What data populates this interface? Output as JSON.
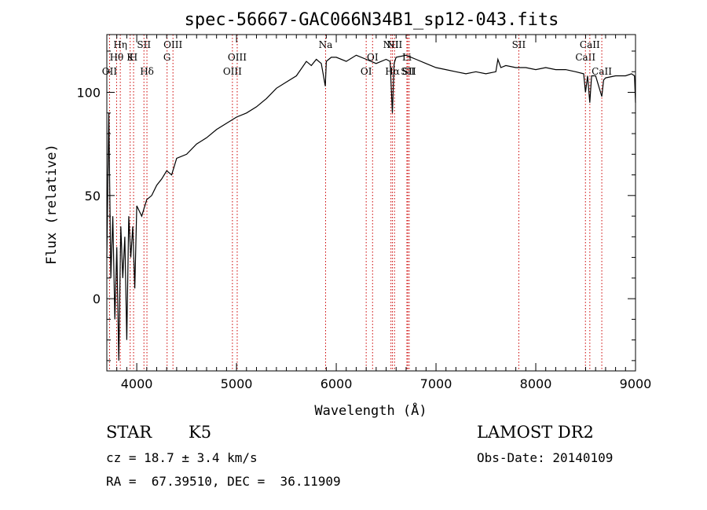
{
  "chart_data": {
    "type": "line",
    "title": "spec-56667-GAC066N34B1_sp12-043.fits",
    "xlabel": "Wavelength (Å)",
    "ylabel": "Flux (relative)",
    "xlim": [
      3700,
      9000
    ],
    "ylim": [
      -35,
      128
    ],
    "xticks": [
      4000,
      5000,
      6000,
      7000,
      8000,
      9000
    ],
    "yticks": [
      0,
      50,
      100
    ],
    "series": [
      {
        "name": "spectrum",
        "x": [
          3700,
          3720,
          3740,
          3760,
          3780,
          3800,
          3820,
          3840,
          3860,
          3880,
          3900,
          3920,
          3940,
          3960,
          3980,
          4000,
          4050,
          4100,
          4150,
          4200,
          4250,
          4300,
          4350,
          4400,
          4500,
          4600,
          4700,
          4800,
          4900,
          5000,
          5100,
          5200,
          5300,
          5400,
          5500,
          5600,
          5700,
          5750,
          5800,
          5850,
          5890,
          5900,
          5950,
          6000,
          6100,
          6200,
          6300,
          6400,
          6500,
          6540,
          6563,
          6580,
          6600,
          6700,
          6800,
          6900,
          7000,
          7100,
          7200,
          7300,
          7400,
          7500,
          7600,
          7620,
          7650,
          7700,
          7800,
          7900,
          8000,
          8100,
          8200,
          8300,
          8400,
          8480,
          8498,
          8520,
          8542,
          8560,
          8600,
          8662,
          8680,
          8700,
          8800,
          8900,
          8960,
          8990,
          9000
        ],
        "y": [
          20,
          90,
          10,
          40,
          -10,
          25,
          -30,
          35,
          10,
          30,
          -20,
          40,
          20,
          35,
          5,
          45,
          40,
          48,
          50,
          55,
          58,
          62,
          60,
          68,
          70,
          75,
          78,
          82,
          85,
          88,
          90,
          93,
          97,
          102,
          105,
          108,
          115,
          113,
          116,
          114,
          103,
          115,
          117,
          117,
          115,
          118,
          116,
          114,
          116,
          115,
          90,
          114,
          117,
          118,
          116,
          114,
          112,
          111,
          110,
          109,
          110,
          109,
          110,
          116,
          112,
          113,
          112,
          112,
          111,
          112,
          111,
          111,
          110,
          109,
          100,
          108,
          95,
          108,
          108,
          98,
          106,
          107,
          108,
          108,
          109,
          108,
          95
        ]
      }
    ],
    "lines": [
      {
        "label": "OII",
        "x": 3727,
        "row": 3
      },
      {
        "label": "Hθ",
        "x": 3798,
        "row": 2
      },
      {
        "label": "Hη",
        "x": 3835,
        "row": 1
      },
      {
        "label": "K",
        "x": 3934,
        "row": 2
      },
      {
        "label": "H",
        "x": 3968,
        "row": 1.5
      },
      {
        "label": "SII",
        "x": 4072,
        "row": 1
      },
      {
        "label": "Hδ",
        "x": 4102,
        "row": 3
      },
      {
        "label": "G",
        "x": 4304,
        "row": 2
      },
      {
        "label": "OIII",
        "x": 4363,
        "row": 1
      },
      {
        "label": "OIII",
        "x": 4959,
        "row": 3
      },
      {
        "label": "OIII",
        "x": 5007,
        "row": 2
      },
      {
        "label": "Na",
        "x": 5893,
        "row": 1
      },
      {
        "label": "OI",
        "x": 6300,
        "row": 3
      },
      {
        "label": "OI",
        "x": 6364,
        "row": 2
      },
      {
        "label": "NII",
        "x": 6548,
        "row": 1
      },
      {
        "label": "Hα",
        "x": 6563,
        "row": 3
      },
      {
        "label": "NII",
        "x": 6584,
        "row": 1
      },
      {
        "label": "Li",
        "x": 6708,
        "row": 2
      },
      {
        "label": "SII",
        "x": 6717,
        "row": 3
      },
      {
        "label": "SII",
        "x": 6731,
        "row": 3
      },
      {
        "label": "SII",
        "x": 7830,
        "row": 1
      },
      {
        "label": "CaII",
        "x": 8498,
        "row": 2
      },
      {
        "label": "CaII",
        "x": 8542,
        "row": 1
      },
      {
        "label": "CaII",
        "x": 8662,
        "row": 3
      }
    ]
  },
  "info": {
    "class_label": "STAR",
    "subclass": "K5",
    "survey": "LAMOST DR2",
    "cz": "cz = 18.7 ± 3.4 km/s",
    "obs_date": "Obs-Date: 20140109",
    "radec": "RA =  67.39510, DEC =  36.11909"
  },
  "colors": {
    "spectrum": "#000000",
    "line_marker": "#cc0000",
    "axes": "#000000"
  }
}
